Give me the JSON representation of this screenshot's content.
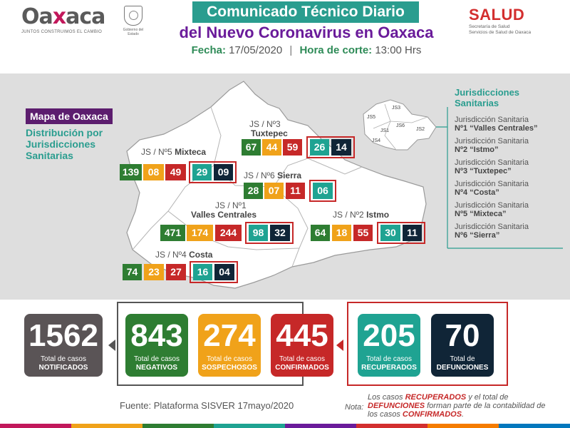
{
  "header": {
    "logo_text_a": "Oa",
    "logo_text_x": "x",
    "logo_text_b": "aca",
    "logo_tagline": "JUNTOS CONSTRUIMOS EL CAMBIO",
    "seal_label": "Gobierno del Estado",
    "title_line1": "Comunicado Técnico Diario",
    "title_line2": "del Nuevo Coronavirus en Oaxaca",
    "fecha_label": "Fecha:",
    "fecha_value": "17/05/2020",
    "corte_label": "Hora de corte:",
    "corte_value": "13:00 Hrs",
    "salud_word": "SALUD",
    "salud_sub1": "Secretaría de Salud",
    "salud_sub2": "Servicios de Salud de Oaxaca"
  },
  "map": {
    "tag": "Mapa de Oaxaca",
    "subtitle": "Distribución por Jurisdicciones Sanitarias",
    "inset_labels": [
      "JS5",
      "JS3",
      "JS1",
      "JS6",
      "JS2",
      "JS4"
    ],
    "jurisdictions": {
      "tuxtepec": {
        "prefix": "JS / Nº3",
        "name": "Tuxtepec",
        "negativos": "67",
        "sospechosos": "44",
        "confirmados": "59",
        "recuperados": "26",
        "defunciones": "14"
      },
      "mixteca": {
        "prefix": "JS / Nº5",
        "name": "Mixteca",
        "negativos": "139",
        "sospechosos": "08",
        "confirmados": "49",
        "recuperados": "29",
        "defunciones": "09"
      },
      "sierra": {
        "prefix": "JS / Nº6",
        "name": "Sierra",
        "negativos": "28",
        "sospechosos": "07",
        "confirmados": "11",
        "recuperados": "06"
      },
      "valles": {
        "prefix": "JS / Nº1",
        "name": "Valles Centrales",
        "negativos": "471",
        "sospechosos": "174",
        "confirmados": "244",
        "recuperados": "98",
        "defunciones": "32"
      },
      "istmo": {
        "prefix": "JS / Nº2",
        "name": "Istmo",
        "negativos": "64",
        "sospechosos": "18",
        "confirmados": "55",
        "recuperados": "30",
        "defunciones": "11"
      },
      "costa": {
        "prefix": "JS / Nº4",
        "name": "Costa",
        "negativos": "74",
        "sospechosos": "23",
        "confirmados": "27",
        "recuperados": "16",
        "defunciones": "04"
      }
    }
  },
  "legend": {
    "title": "Jurisdicciones Sanitarias",
    "items": [
      {
        "line1": "Jurisdicción Sanitaria",
        "line2": "Nº1 “Valles Centrales”"
      },
      {
        "line1": "Jurisdicción Sanitaria",
        "line2": "Nº2 “Istmo”"
      },
      {
        "line1": "Jurisdicción Sanitaria",
        "line2": "Nº3 “Tuxtepec”"
      },
      {
        "line1": "Jurisdicción Sanitaria",
        "line2": "Nº4 “Costa”"
      },
      {
        "line1": "Jurisdicción Sanitaria",
        "line2": "Nº5 “Mixteca”"
      },
      {
        "line1": "Jurisdicción Sanitaria",
        "line2": "Nº6 “Sierra”"
      }
    ]
  },
  "totals": [
    {
      "value": "1562",
      "line1": "Total de casos",
      "line2": "NOTIFICADOS"
    },
    {
      "value": "843",
      "line1": "Total de casos",
      "line2": "NEGATIVOS"
    },
    {
      "value": "274",
      "line1": "Total de casos",
      "line2": "SOSPECHOSOS"
    },
    {
      "value": "445",
      "line1": "Total de casos",
      "line2": "CONFIRMADOS"
    },
    {
      "value": "205",
      "line1": "Total de casos",
      "line2": "RECUPERADOS"
    },
    {
      "value": "70",
      "line1": "Total de",
      "line2": "DEFUNCIONES"
    }
  ],
  "colors": {
    "negativos": "#2e7d32",
    "sospechosos": "#f0a21a",
    "confirmados": "#c62828",
    "recuperados": "#1fa392",
    "defunciones": "#102537",
    "notificados": "#5a5456",
    "accent_purple": "#5c1d6e",
    "accent_teal": "#2a9d8f"
  },
  "footer": {
    "fuente": "Fuente: Plataforma SISVER 17mayo/2020",
    "nota_label": "Nota:",
    "nota_part1": "Los casos ",
    "nota_recuperados": "RECUPERADOS",
    "nota_part2": " y el total de ",
    "nota_defunciones": "DEFUNCIONES",
    "nota_part3": " forman parte de la contabilidad de los casos ",
    "nota_confirmados": "CONFIRMADOS",
    "nota_part4": "."
  }
}
